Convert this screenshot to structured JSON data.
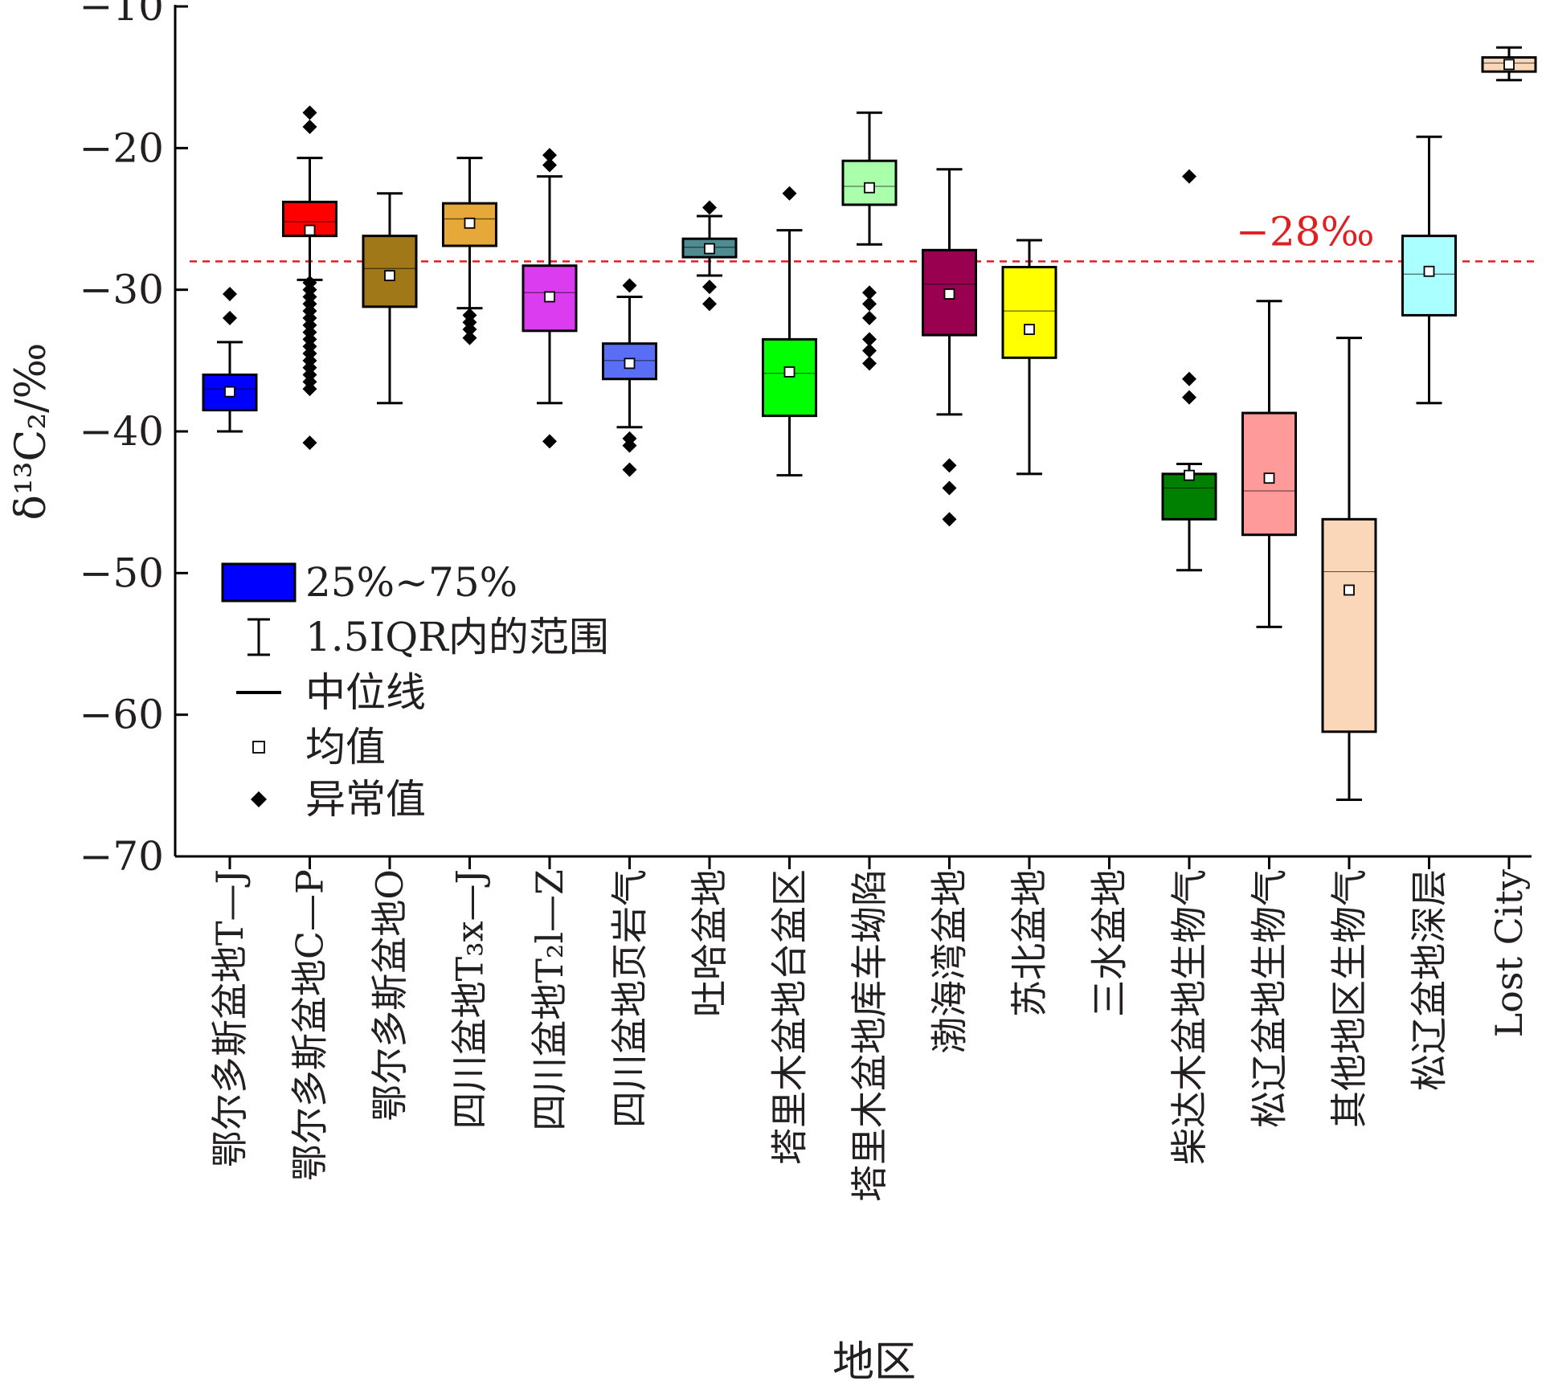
{
  "chart_data": {
    "type": "box",
    "title": "",
    "ylabel": "δ¹³C₂/‰",
    "xlabel": "地区",
    "ylim": [
      -70,
      -10
    ],
    "yticks": [
      -10,
      -20,
      -30,
      -40,
      -50,
      -60,
      -70
    ],
    "ytick_labels": [
      "−10",
      "−20",
      "−30",
      "−40",
      "−50",
      "−60",
      "−70"
    ],
    "reference_line": {
      "value": -28,
      "label": "−28‰",
      "color": "#e02020",
      "style": "dashed"
    },
    "legend": {
      "placement": "lower-left",
      "entries": [
        {
          "symbol": "box",
          "label": "25%~75%"
        },
        {
          "symbol": "whisker",
          "label": "1.5IQR内的范围"
        },
        {
          "symbol": "median-line",
          "label": "中位线"
        },
        {
          "symbol": "mean-square",
          "label": "均值"
        },
        {
          "symbol": "outlier-diamond",
          "label": "异常值"
        }
      ]
    },
    "categories": [
      {
        "label": "鄂尔多斯盆地T—J",
        "color": "#0000ff",
        "q1": -38.5,
        "median": -37.0,
        "q3": -36.0,
        "mean": -37.2,
        "whisker_low": -40.0,
        "whisker_high": -33.7,
        "outliers": [
          -30.3,
          -32.0
        ]
      },
      {
        "label": "鄂尔多斯盆地C—P",
        "color": "#ff0000",
        "q1": -26.2,
        "median": -25.2,
        "q3": -23.8,
        "mean": -25.8,
        "whisker_low": -29.3,
        "whisker_high": -20.7,
        "outliers": [
          -17.5,
          -18.5,
          -29.5,
          -30.0,
          -30.5,
          -31.0,
          -31.5,
          -32.0,
          -32.5,
          -33.0,
          -33.5,
          -34.0,
          -34.5,
          -35.0,
          -35.5,
          -36.0,
          -36.5,
          -37.0,
          -40.8
        ]
      },
      {
        "label": "鄂尔多斯盆地O",
        "color": "#a07818",
        "q1": -31.2,
        "median": -28.5,
        "q3": -26.2,
        "mean": -29.0,
        "whisker_low": -38.0,
        "whisker_high": -23.2,
        "outliers": []
      },
      {
        "label": "四川盆地T₃x—J",
        "color": "#e6a838",
        "q1": -26.9,
        "median": -25.0,
        "q3": -23.9,
        "mean": -25.3,
        "whisker_low": -31.3,
        "whisker_high": -20.7,
        "outliers": [
          -31.8,
          -32.3,
          -32.8,
          -33.4
        ]
      },
      {
        "label": "四川盆地T₂l—Z",
        "color": "#dc3cf0",
        "q1": -32.9,
        "median": -30.2,
        "q3": -28.3,
        "mean": -30.5,
        "whisker_low": -38.0,
        "whisker_high": -22.0,
        "outliers": [
          -20.5,
          -21.2,
          -40.7
        ]
      },
      {
        "label": "四川盆地页岩气",
        "color": "#5a6ef5",
        "q1": -36.3,
        "median": -35.0,
        "q3": -33.8,
        "mean": -35.2,
        "whisker_low": -39.7,
        "whisker_high": -30.5,
        "outliers": [
          -29.7,
          -40.5,
          -41.0,
          -42.7
        ]
      },
      {
        "label": "吐哈盆地",
        "color": "#4e8c92",
        "q1": -27.7,
        "median": -27.0,
        "q3": -26.4,
        "mean": -27.1,
        "whisker_low": -29.0,
        "whisker_high": -24.8,
        "outliers": [
          -24.2,
          -29.8,
          -31.0
        ]
      },
      {
        "label": "塔里木盆地台盆区",
        "color": "#00ff00",
        "q1": -38.9,
        "median": -35.9,
        "q3": -33.5,
        "mean": -35.8,
        "whisker_low": -43.1,
        "whisker_high": -25.8,
        "outliers": [
          -23.2
        ]
      },
      {
        "label": "塔里木盆地库车坳陷",
        "color": "#aaffaa",
        "q1": -24.0,
        "median": -22.7,
        "q3": -20.9,
        "mean": -22.8,
        "whisker_low": -26.8,
        "whisker_high": -17.5,
        "outliers": [
          -30.2,
          -31.0,
          -32.0,
          -33.5,
          -34.3,
          -35.2
        ]
      },
      {
        "label": "渤海湾盆地",
        "color": "#990050",
        "q1": -33.2,
        "median": -29.6,
        "q3": -27.2,
        "mean": -30.3,
        "whisker_low": -38.8,
        "whisker_high": -21.5,
        "outliers": [
          -42.4,
          -44.0,
          -46.2
        ]
      },
      {
        "label": "苏北盆地",
        "color": "#ffff00",
        "q1": -34.8,
        "median": -31.5,
        "q3": -28.4,
        "mean": -32.8,
        "whisker_low": -43.0,
        "whisker_high": -26.5,
        "outliers": []
      },
      {
        "label": "三水盆地",
        "color": "#cccccc",
        "q1": null,
        "median": null,
        "q3": null,
        "mean": null,
        "whisker_low": null,
        "whisker_high": null,
        "outliers": []
      },
      {
        "label": "柴达木盆地生物气",
        "color": "#008000",
        "q1": -46.2,
        "median": -44.0,
        "q3": -43.0,
        "mean": -43.1,
        "whisker_low": -49.8,
        "whisker_high": -42.3,
        "outliers": [
          -22.0,
          -36.3,
          -37.6
        ]
      },
      {
        "label": "松辽盆地生物气",
        "color": "#ff9a9a",
        "q1": -47.3,
        "median": -44.2,
        "q3": -38.7,
        "mean": -43.3,
        "whisker_low": -53.8,
        "whisker_high": -30.8,
        "outliers": []
      },
      {
        "label": "其他地区生物气",
        "color": "#fad7b8",
        "q1": -61.2,
        "median": -49.9,
        "q3": -46.2,
        "mean": -51.2,
        "whisker_low": -66.0,
        "whisker_high": -33.4,
        "outliers": []
      },
      {
        "label": "松辽盆地深层",
        "color": "#aaffff",
        "q1": -31.8,
        "median": -28.9,
        "q3": -26.2,
        "mean": -28.7,
        "whisker_low": -38.0,
        "whisker_high": -19.2,
        "outliers": []
      },
      {
        "label": "Lost City",
        "color": "#fad7b8",
        "q1": -14.6,
        "median": -14.0,
        "q3": -13.6,
        "mean": -14.1,
        "whisker_low": -15.2,
        "whisker_high": -12.9,
        "outliers": []
      }
    ]
  }
}
